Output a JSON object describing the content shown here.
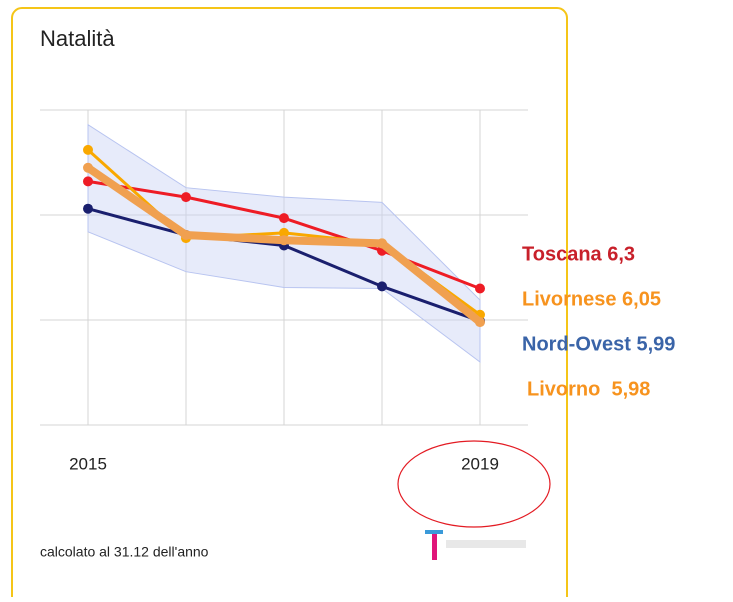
{
  "chart_data": {
    "type": "line",
    "title": "Natalità",
    "categories": [
      "2015",
      null,
      null,
      null,
      "2019"
    ],
    "ylim": [
      5,
      8
    ],
    "yticks": [
      5,
      6,
      7,
      8
    ],
    "grid": true,
    "band": {
      "color": "#c9d3f5",
      "upper": [
        7.86,
        7.26,
        7.17,
        7.12,
        6.19
      ],
      "lower": [
        6.84,
        6.46,
        6.31,
        6.3,
        5.6
      ]
    },
    "series": [
      {
        "name": "Nord-Ovest 5,99",
        "color": "#1a1f6e",
        "label_color": "#3a64a8",
        "width": 3,
        "values": [
          7.06,
          6.81,
          6.71,
          6.32,
          5.99
        ]
      },
      {
        "name": "Toscana 6,3",
        "color": "#ee1c25",
        "label_color": "#c8202a",
        "width": 3,
        "values": [
          7.32,
          7.17,
          6.97,
          6.66,
          6.3
        ]
      },
      {
        "name": "Livornese 6,05",
        "color": "#f9a800",
        "label_color": "#f7931e",
        "width": 3,
        "values": [
          7.62,
          6.78,
          6.83,
          6.73,
          6.05
        ]
      },
      {
        "name": "Livorno  5,98",
        "color": "#f0a050",
        "label_color": "#f7931e",
        "width": 8,
        "values": [
          7.45,
          6.81,
          6.76,
          6.73,
          5.98
        ]
      }
    ],
    "footnote": "calcolato al 31.12 dell'anno"
  }
}
